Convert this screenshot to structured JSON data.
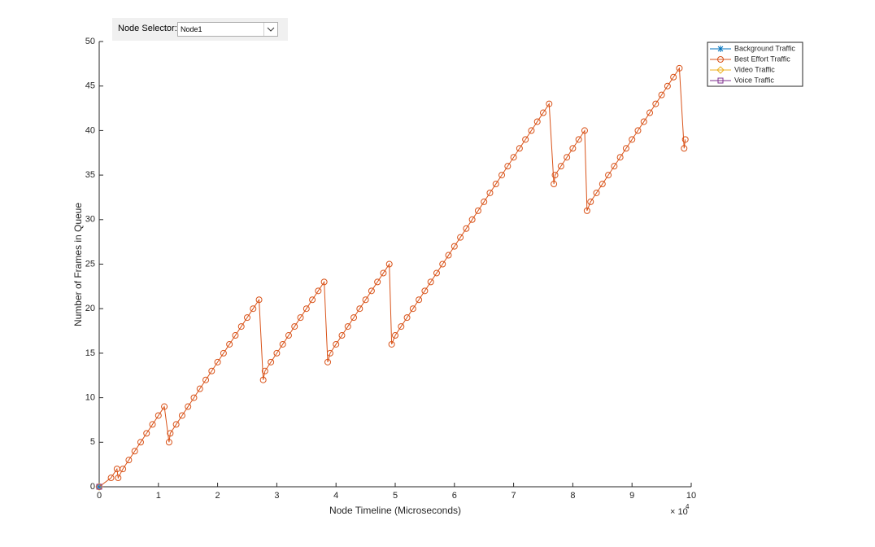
{
  "controls": {
    "node_selector": {
      "label": "Node Selector:",
      "value": "Node1"
    }
  },
  "chart_data": {
    "type": "line",
    "xlabel": "Node Timeline (Microseconds)",
    "ylabel": "Number of Frames in Queue",
    "x_multiplier": {
      "base": "× 10",
      "exponent": "4"
    },
    "xlim": [
      0,
      10
    ],
    "xticks": [
      0,
      1,
      2,
      3,
      4,
      5,
      6,
      7,
      8,
      9,
      10
    ],
    "ylim": [
      0,
      50
    ],
    "yticks": [
      0,
      5,
      10,
      15,
      20,
      25,
      30,
      35,
      40,
      45,
      50
    ],
    "grid": false,
    "legend_location": "northeastoutside",
    "series": [
      {
        "name": "Background Traffic",
        "color": "#0072BD",
        "marker": "asterisk",
        "x": [
          0
        ],
        "values": [
          0
        ]
      },
      {
        "name": "Best Effort Traffic",
        "color": "#D95319",
        "marker": "circle",
        "x": [
          0,
          0.2,
          0.3,
          0.32,
          0.4,
          0.5,
          0.6,
          0.7,
          0.8,
          0.9,
          1.0,
          1.1,
          1.18,
          1.2,
          1.3,
          1.4,
          1.5,
          1.6,
          1.7,
          1.8,
          1.9,
          2.0,
          2.1,
          2.2,
          2.3,
          2.4,
          2.5,
          2.6,
          2.7,
          2.77,
          2.8,
          2.9,
          3.0,
          3.1,
          3.2,
          3.3,
          3.4,
          3.5,
          3.6,
          3.7,
          3.8,
          3.86,
          3.9,
          4.0,
          4.1,
          4.2,
          4.3,
          4.4,
          4.5,
          4.6,
          4.7,
          4.8,
          4.9,
          4.94,
          5.0,
          5.1,
          5.2,
          5.3,
          5.4,
          5.5,
          5.6,
          5.7,
          5.8,
          5.9,
          6.0,
          6.1,
          6.2,
          6.3,
          6.4,
          6.5,
          6.6,
          6.7,
          6.8,
          6.9,
          7.0,
          7.1,
          7.2,
          7.3,
          7.4,
          7.5,
          7.6,
          7.68,
          7.7,
          7.8,
          7.9,
          8.0,
          8.1,
          8.2,
          8.24,
          8.3,
          8.4,
          8.5,
          8.6,
          8.7,
          8.8,
          8.9,
          9.0,
          9.1,
          9.2,
          9.3,
          9.4,
          9.5,
          9.6,
          9.7,
          9.8,
          9.88,
          9.9
        ],
        "values": [
          0,
          1,
          2,
          1,
          2,
          3,
          4,
          5,
          6,
          7,
          8,
          9,
          5,
          6,
          7,
          8,
          9,
          10,
          11,
          12,
          13,
          14,
          15,
          16,
          17,
          18,
          19,
          20,
          21,
          12,
          13,
          14,
          15,
          16,
          17,
          18,
          19,
          20,
          21,
          22,
          23,
          14,
          15,
          16,
          17,
          18,
          19,
          20,
          21,
          22,
          23,
          24,
          25,
          16,
          17,
          18,
          19,
          20,
          21,
          22,
          23,
          24,
          25,
          26,
          27,
          28,
          29,
          30,
          31,
          32,
          33,
          34,
          35,
          36,
          37,
          38,
          39,
          40,
          41,
          42,
          43,
          34,
          35,
          36,
          37,
          38,
          39,
          40,
          31,
          32,
          33,
          34,
          35,
          36,
          37,
          38,
          39,
          40,
          41,
          42,
          43,
          44,
          45,
          46,
          47,
          38,
          39
        ]
      },
      {
        "name": "Video Traffic",
        "color": "#EDB120",
        "marker": "diamond",
        "x": [
          0
        ],
        "values": [
          0
        ]
      },
      {
        "name": "Voice Traffic",
        "color": "#7E2F8E",
        "marker": "square",
        "x": [
          0
        ],
        "values": [
          0
        ]
      }
    ]
  }
}
